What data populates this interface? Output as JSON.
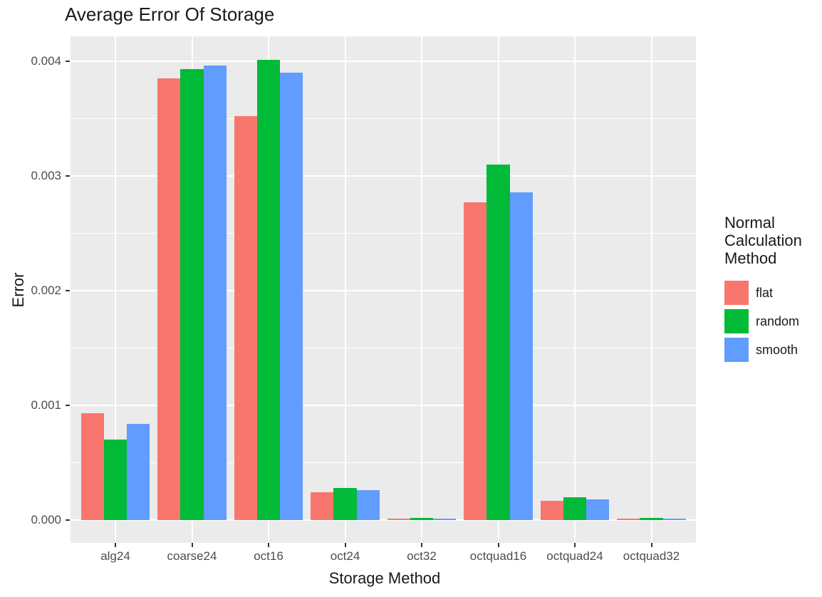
{
  "title": "Average Error Of Storage",
  "chart_data": {
    "type": "bar",
    "title": "Average Error Of Storage",
    "xlabel": "Storage Method",
    "ylabel": "Error",
    "categories": [
      "alg24",
      "coarse24",
      "oct16",
      "oct24",
      "oct32",
      "octquad16",
      "octquad24",
      "octquad32"
    ],
    "series": [
      {
        "name": "flat",
        "color": "#F8766D",
        "values": [
          0.00093,
          0.00385,
          0.00352,
          0.00024,
          1e-05,
          0.00277,
          0.00017,
          1e-05
        ]
      },
      {
        "name": "random",
        "color": "#00BA38",
        "values": [
          0.0007,
          0.00393,
          0.00401,
          0.00028,
          2e-05,
          0.0031,
          0.0002,
          2e-05
        ]
      },
      {
        "name": "smooth",
        "color": "#619CFF",
        "values": [
          0.00084,
          0.00396,
          0.0039,
          0.00026,
          1e-05,
          0.00286,
          0.00018,
          1.5e-05
        ]
      }
    ],
    "yticks": [
      0,
      0.001,
      0.002,
      0.003,
      0.004
    ],
    "ytick_labels": [
      "0.000",
      "0.001",
      "0.002",
      "0.003",
      "0.004"
    ],
    "yminor": [
      0.0005,
      0.0015,
      0.0025,
      0.0035
    ],
    "ylim": [
      0,
      0.0042
    ],
    "grid": "white major and minor horizontal lines, white vertical lines at category centers, on gray panel",
    "legend_position": "right"
  },
  "legend": {
    "title": "Normal Calculation Method",
    "title_lines": [
      "Normal",
      "Calculation",
      "Method"
    ]
  },
  "colors": {
    "panel_background": "#EBEBEB",
    "gridline": "#FFFFFF",
    "axis_text": "#4D4D4D",
    "tick_mark": "#333333",
    "title_text": "#1a1a1a"
  }
}
